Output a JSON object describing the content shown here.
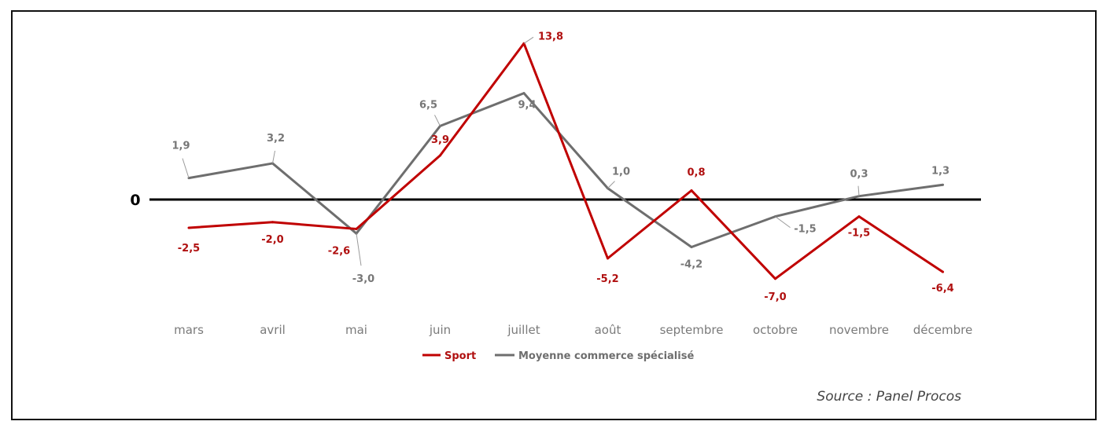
{
  "chart_data": {
    "type": "line",
    "categories": [
      "mars",
      "avril",
      "mai",
      "juin",
      "juillet",
      "août",
      "septembre",
      "octobre",
      "novembre",
      "décembre"
    ],
    "series": [
      {
        "name": "Sport",
        "color": "#C00000",
        "values": [
          -2.5,
          -2.0,
          -2.6,
          3.9,
          13.8,
          -5.2,
          0.8,
          -7.0,
          -1.5,
          -6.4
        ],
        "labels": [
          "-2,5",
          "-2,0",
          "-2,6",
          "3,9",
          "13,8",
          "-5,2",
          "0,8",
          "-7,0",
          "-1,5",
          "-6,4"
        ]
      },
      {
        "name": "Moyenne commerce spécialisé",
        "color": "#6E6E6E",
        "values": [
          1.9,
          3.2,
          -3.0,
          6.5,
          9.4,
          1.0,
          -4.2,
          -1.5,
          0.3,
          1.3
        ],
        "labels": [
          "1,9",
          "3,2",
          "-3,0",
          "6,5",
          "9,4",
          "1,0",
          "-4,2",
          "-1,5",
          "0,3",
          "1,3"
        ]
      }
    ],
    "zero_label": "0",
    "ylim": [
      -8,
      15
    ],
    "grid": false,
    "legend": "bottom-center"
  },
  "source": "Source : Panel Procos"
}
